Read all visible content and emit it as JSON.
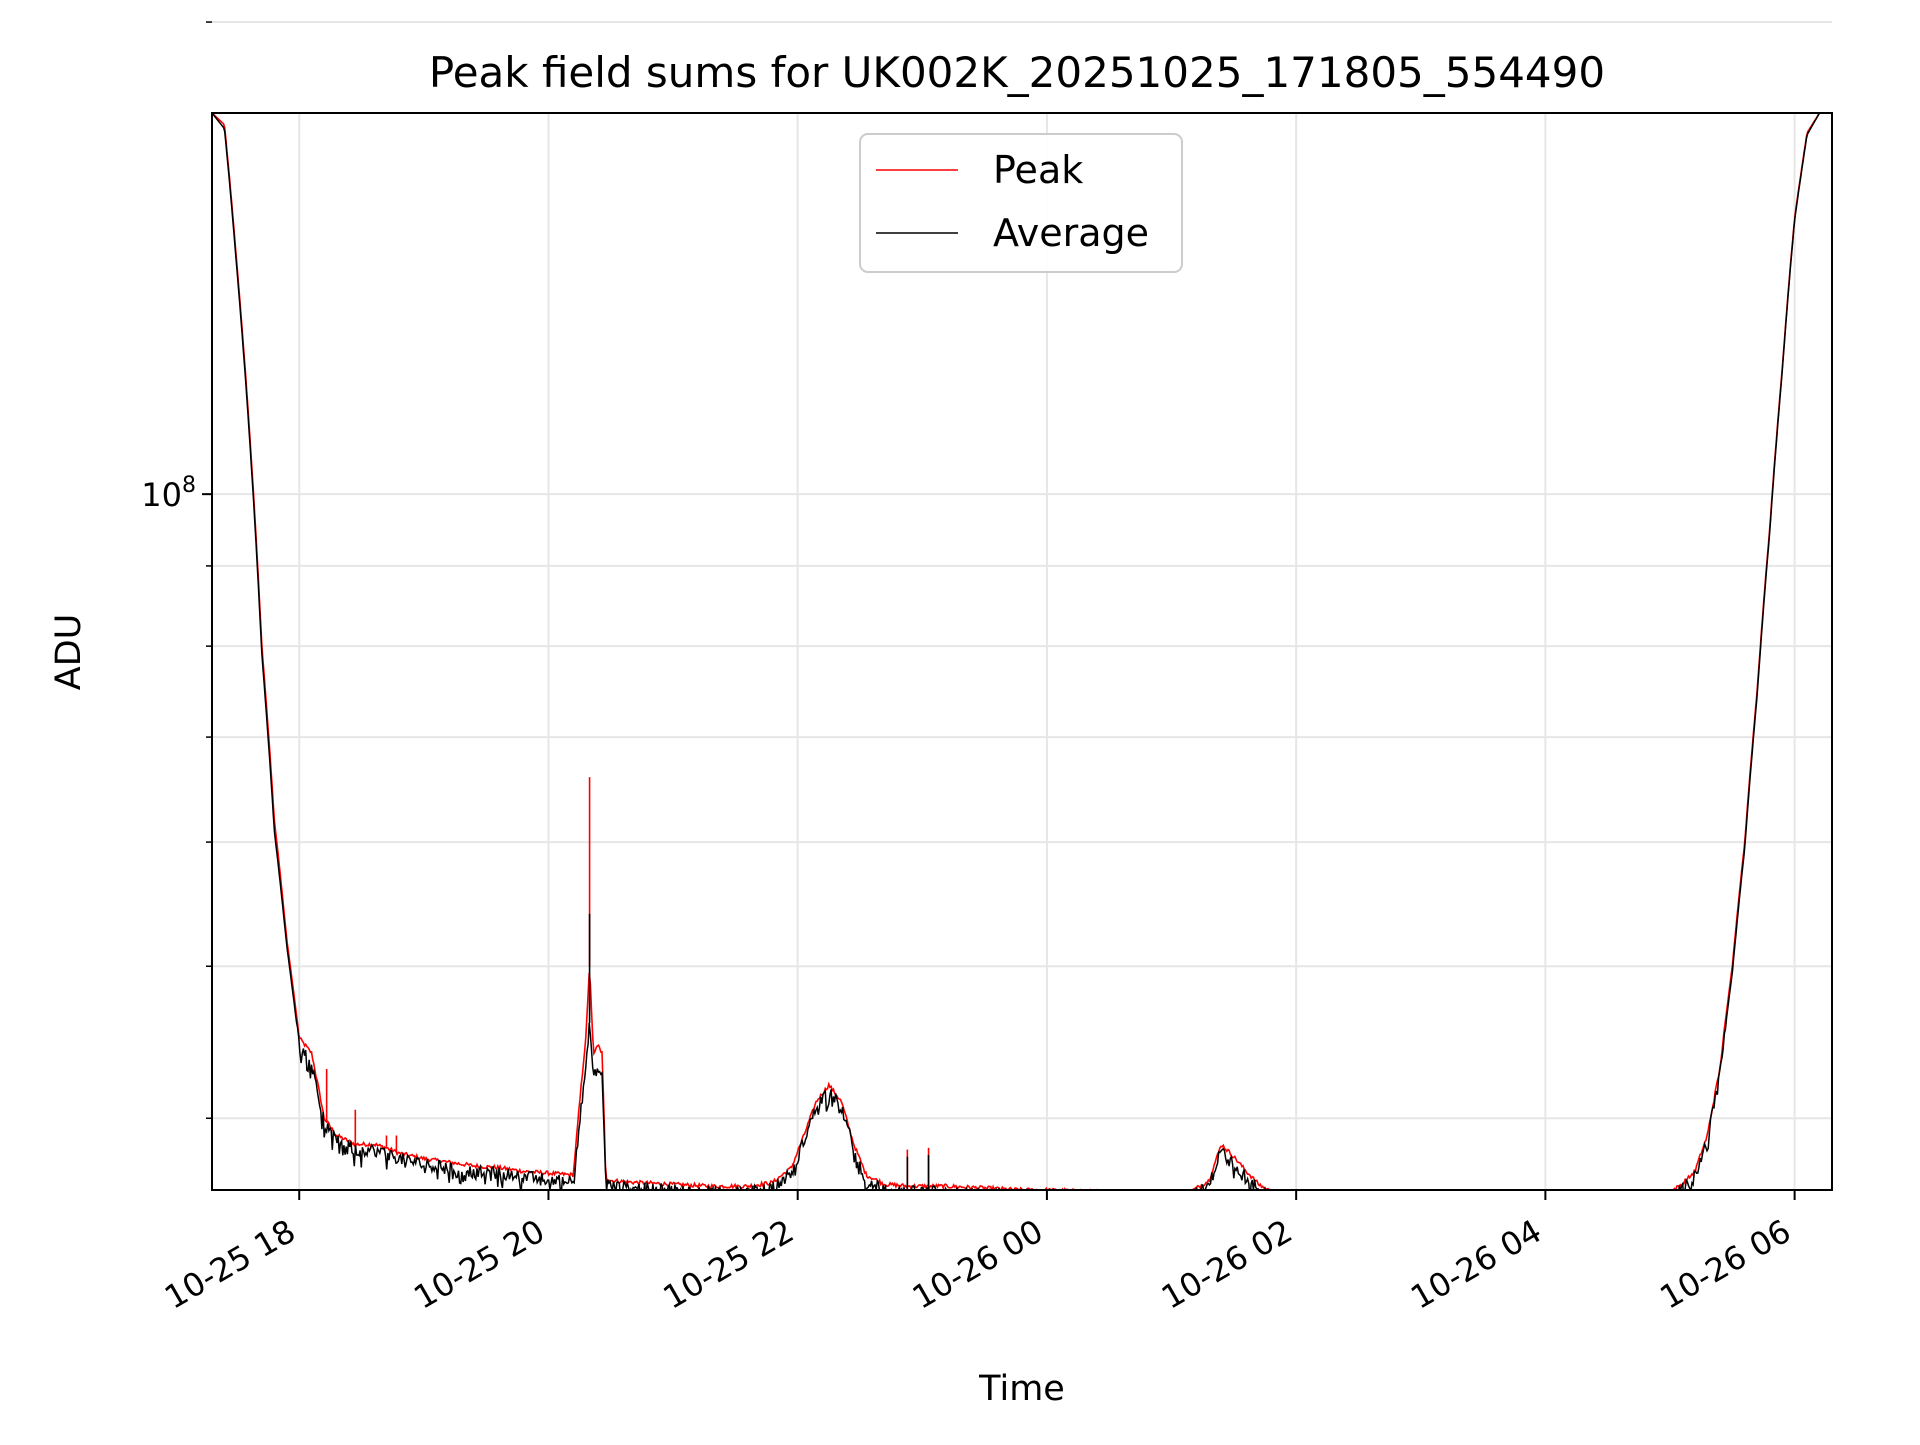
{
  "chart_data": {
    "type": "line",
    "title": "Peak field sums for UK002K_20251025_171805_554490",
    "xlabel": "Time",
    "ylabel": "ADU",
    "y_scale": "log",
    "grid": true,
    "legend": "upper center",
    "x_unit": "hours since 2025-10-25 00:00",
    "xlim": [
      17.3,
      30.3
    ],
    "ylim": [
      36000000,
      175000000
    ],
    "x_ticks": [
      {
        "value": 18,
        "label": "10-25 18"
      },
      {
        "value": 20,
        "label": "10-25 20"
      },
      {
        "value": 22,
        "label": "10-25 22"
      },
      {
        "value": 24,
        "label": "10-26 00"
      },
      {
        "value": 26,
        "label": "10-26 02"
      },
      {
        "value": 28,
        "label": "10-26 04"
      },
      {
        "value": 30,
        "label": "10-26 06"
      }
    ],
    "y_major_tick": {
      "value": 100000000,
      "base": "10",
      "exponent": "8"
    },
    "y_minor_ticks": [
      40000000,
      50000000,
      60000000,
      70000000,
      80000000,
      90000000,
      200000000
    ],
    "series": [
      {
        "name": "Peak",
        "color": "#ff0000",
        "x": [
          17.3,
          17.4,
          17.5,
          17.6,
          17.7,
          17.8,
          17.9,
          18.0,
          18.05,
          18.1,
          18.2,
          18.3,
          18.45,
          18.6,
          18.7,
          18.8,
          19.0,
          19.2,
          19.4,
          19.6,
          19.8,
          20.0,
          20.2,
          20.3,
          20.33,
          20.36,
          20.4,
          20.43,
          20.46,
          20.5,
          20.7,
          21.0,
          21.3,
          21.6,
          21.8,
          21.95,
          22.05,
          22.15,
          22.25,
          22.35,
          22.45,
          22.55,
          22.7,
          22.9,
          23.2,
          23.5,
          23.8,
          24.0,
          24.4,
          24.8,
          25.1,
          25.3,
          25.4,
          25.5,
          25.6,
          25.7,
          25.8,
          26.0,
          26.3,
          26.6,
          26.9,
          27.1,
          27.25,
          27.3,
          27.4,
          27.6,
          28.0,
          28.4,
          28.8,
          29.0,
          29.1,
          29.2,
          29.3,
          29.4,
          29.5,
          29.6,
          29.7,
          29.8,
          29.9,
          30.0,
          30.1,
          30.2,
          30.3
        ],
        "y": [
          175000000,
          172000000,
          140000000,
          110000000,
          80000000,
          62000000,
          52000000,
          45000000,
          44500000,
          44000000,
          40000000,
          39000000,
          38500000,
          38500000,
          38300000,
          38000000,
          37700000,
          37500000,
          37300000,
          37200000,
          37000000,
          36900000,
          36800000,
          45000000,
          50000000,
          44000000,
          44500000,
          44000000,
          36700000,
          36500000,
          36400000,
          36300000,
          36200000,
          36200000,
          36400000,
          37200000,
          39000000,
          41000000,
          42000000,
          41000000,
          38500000,
          36800000,
          36300000,
          36200000,
          36200000,
          36100000,
          36000000,
          36000000,
          35900000,
          35800000,
          35700000,
          36500000,
          38500000,
          37800000,
          37000000,
          36300000,
          35900000,
          35700000,
          35600000,
          35500000,
          35400000,
          35300000,
          35300000,
          35500000,
          35350000,
          35350000,
          35400000,
          35500000,
          35700000,
          35900000,
          36300000,
          37000000,
          39000000,
          43000000,
          50000000,
          60000000,
          75000000,
          95000000,
          120000000,
          150000000,
          170000000,
          175000000,
          175000000
        ]
      },
      {
        "name": "Average",
        "color": "#000000",
        "x": [
          17.3,
          17.4,
          17.5,
          17.6,
          17.7,
          17.8,
          17.9,
          18.0,
          18.05,
          18.1,
          18.2,
          18.3,
          18.45,
          18.6,
          18.7,
          18.8,
          19.0,
          19.2,
          19.4,
          19.6,
          19.8,
          20.0,
          20.2,
          20.3,
          20.33,
          20.36,
          20.4,
          20.43,
          20.46,
          20.5,
          20.7,
          21.0,
          21.3,
          21.6,
          21.8,
          21.95,
          22.05,
          22.15,
          22.25,
          22.35,
          22.45,
          22.55,
          22.7,
          22.9,
          23.2,
          23.5,
          23.8,
          24.0,
          24.4,
          24.8,
          25.1,
          25.3,
          25.4,
          25.5,
          25.6,
          25.7,
          25.8,
          26.0,
          26.3,
          26.6,
          26.9,
          27.1,
          27.25,
          27.3,
          27.4,
          27.6,
          28.0,
          28.4,
          28.8,
          29.0,
          29.1,
          29.2,
          29.3,
          29.4,
          29.5,
          29.6,
          29.7,
          29.8,
          29.9,
          30.0,
          30.1,
          30.2,
          30.3
        ],
        "y": [
          175000000,
          171000000,
          139000000,
          109000000,
          79000000,
          61000000,
          51500000,
          44500000,
          44000000,
          43500000,
          39700000,
          38700000,
          38200000,
          38200000,
          38000000,
          37700000,
          37400000,
          37200000,
          37000000,
          36900000,
          36700000,
          36600000,
          36500000,
          43000000,
          46000000,
          42500000,
          43000000,
          42500000,
          36400000,
          36200000,
          36100000,
          36000000,
          35900000,
          35900000,
          36100000,
          36900000,
          38700000,
          40700000,
          41700000,
          40700000,
          38200000,
          36500000,
          36000000,
          35900000,
          35900000,
          35800000,
          35700000,
          35700000,
          35600000,
          35500000,
          35400000,
          36200000,
          38200000,
          37500000,
          36700000,
          36000000,
          35600000,
          35400000,
          35300000,
          35200000,
          35100000,
          35000000,
          35000000,
          35200000,
          35050000,
          35050000,
          35100000,
          35200000,
          35400000,
          35600000,
          36000000,
          36700000,
          38700000,
          42700000,
          49500000,
          59500000,
          74500000,
          94500000,
          119500000,
          149500000,
          169500000,
          175000000,
          175000000
        ]
      }
    ],
    "spikes": [
      {
        "series": "Peak",
        "x": 18.22,
        "value": 43000000
      },
      {
        "series": "Peak",
        "x": 18.45,
        "value": 40500000
      },
      {
        "series": "Peak",
        "x": 18.7,
        "value": 39000000
      },
      {
        "series": "Peak",
        "x": 18.78,
        "value": 39000000
      },
      {
        "series": "Peak",
        "x": 20.33,
        "value": 66000000
      },
      {
        "series": "Average",
        "x": 20.33,
        "value": 54000000
      },
      {
        "series": "Peak",
        "x": 22.88,
        "value": 38200000
      },
      {
        "series": "Peak",
        "x": 23.05,
        "value": 38300000
      },
      {
        "series": "Average",
        "x": 22.88,
        "value": 37800000
      },
      {
        "series": "Average",
        "x": 23.05,
        "value": 37900000
      }
    ]
  }
}
